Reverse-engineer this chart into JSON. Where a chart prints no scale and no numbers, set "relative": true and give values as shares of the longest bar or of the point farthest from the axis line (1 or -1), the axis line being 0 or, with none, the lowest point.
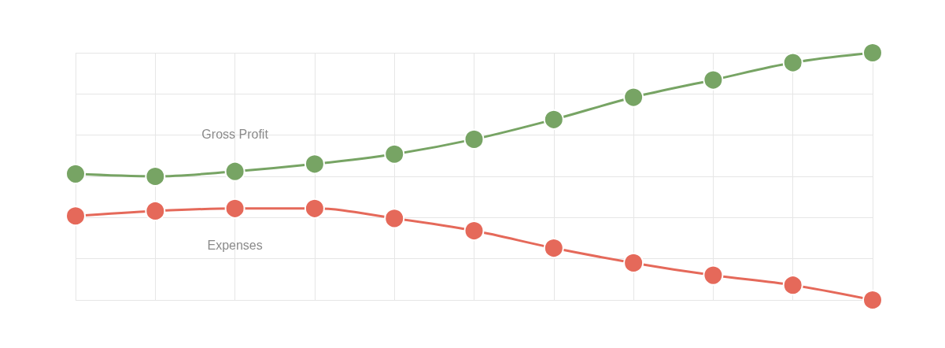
{
  "chart_data": {
    "type": "line",
    "relative": true,
    "grid": true,
    "marker": "circle",
    "line_style": "solid",
    "legend": false,
    "categories": [
      null,
      null,
      null,
      null,
      null,
      null,
      null,
      null,
      null,
      null,
      null
    ],
    "series": [
      {
        "name": "Gross Profit",
        "color": "#77a464",
        "values": [
          0.51,
          0.5,
          0.52,
          0.55,
          0.59,
          0.65,
          0.73,
          0.82,
          0.89,
          0.96,
          1
        ]
      },
      {
        "name": "Expenses",
        "color": "#e5695a",
        "values": [
          0.34,
          0.36,
          0.37,
          0.37,
          0.33,
          0.28,
          0.21,
          0.15,
          0.1,
          0.06,
          0
        ]
      }
    ]
  }
}
